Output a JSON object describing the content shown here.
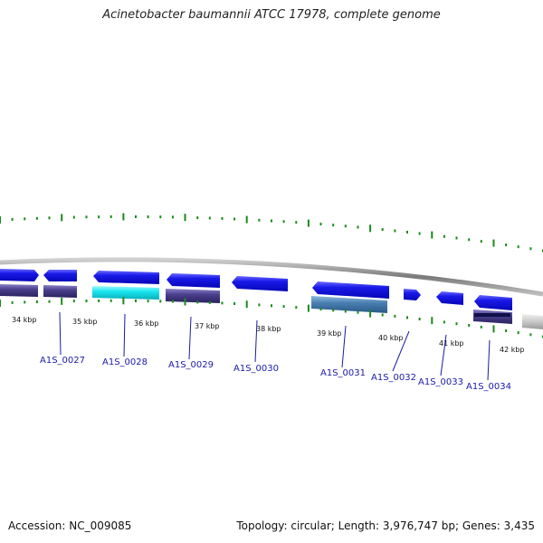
{
  "title": "Acinetobacter baumannii ATCC 17978, complete genome",
  "footer": {
    "accession": "Accession: NC_009085",
    "summary": "Topology: circular; Length: 3,976,747 bp; Genes: 3,435"
  },
  "scale_labels": [
    "34 kbp",
    "35 kbp",
    "36 kbp",
    "37 kbp",
    "38 kbp",
    "39 kbp",
    "40 kbp",
    "41 kbp",
    "42 kbp"
  ],
  "gene_labels": [
    "A1S_0027",
    "A1S_0028",
    "A1S_0029",
    "A1S_0030",
    "A1S_0031",
    "A1S_0032",
    "A1S_0033",
    "A1S_0034"
  ],
  "colors": {
    "gene_blue": "#1010e0",
    "cog_purple": "#4a3f8c",
    "cog_cyan": "#19e6ef",
    "cog_steel": "#4a7fb0",
    "cog_gray": "#c8c8c8",
    "tick_green": "#1a8a1a",
    "backbone_gray": "#8a8a8a",
    "label_blue": "#1a1aa8"
  }
}
